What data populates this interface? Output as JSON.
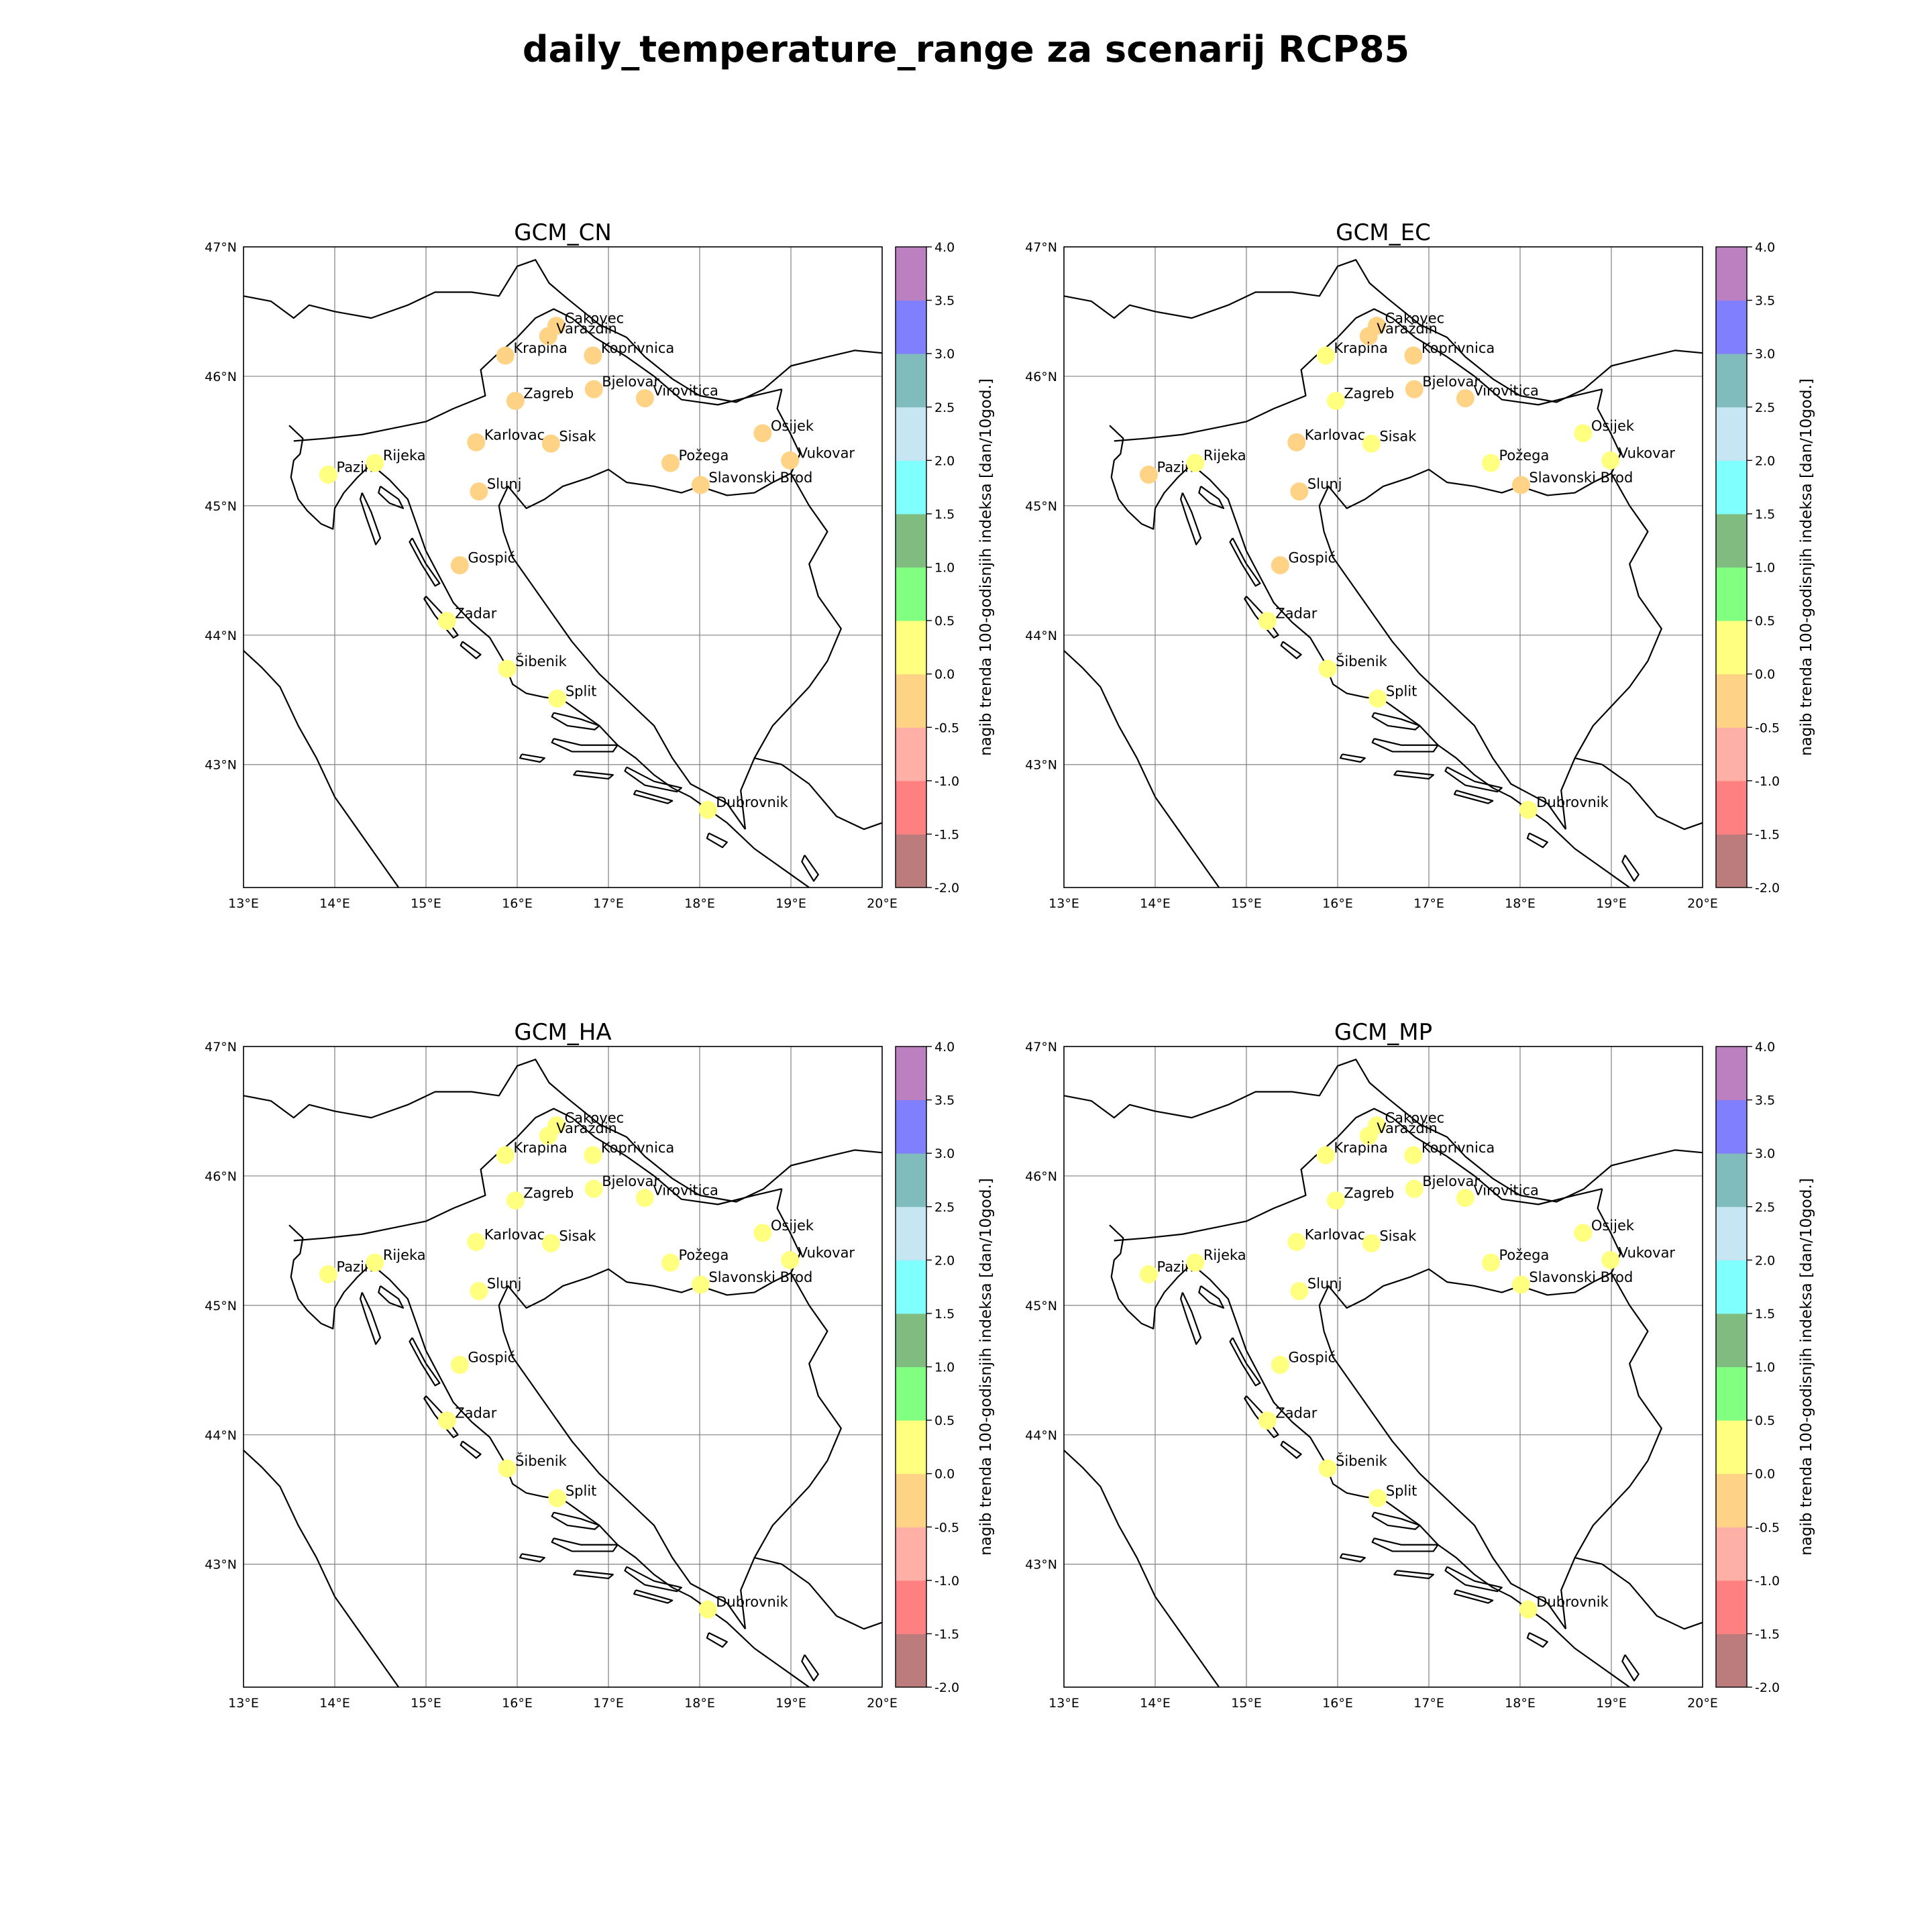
{
  "title": "daily_temperature_range za scenarij RCP85",
  "colorbar": {
    "label": "nagib trenda 100-godisnjih indeksa [dan/10god.]",
    "ticks": [
      "-2.0",
      "-1.5",
      "-1.0",
      "-0.5",
      "0.0",
      "0.5",
      "1.0",
      "1.5",
      "2.0",
      "2.5",
      "3.0",
      "3.5",
      "4.0"
    ],
    "colors": [
      "#bc7c7c",
      "#ff8080",
      "#ffb0a6",
      "#ffd386",
      "#ffff80",
      "#80ff80",
      "#80bc80",
      "#80ffff",
      "#c6e6f3",
      "#80bcbc",
      "#8080ff",
      "#bc80c0"
    ]
  },
  "axes": {
    "lon_labels": [
      "13°E",
      "14°E",
      "15°E",
      "16°E",
      "17°E",
      "18°E",
      "19°E",
      "20°E"
    ],
    "lat_labels": [
      "43°N",
      "44°N",
      "45°N",
      "46°N",
      "47°N"
    ],
    "lon_range": [
      13,
      20
    ],
    "lat_range": [
      42.05,
      47
    ]
  },
  "stations": [
    {
      "name": "Cakovec",
      "lon": 16.43,
      "lat": 46.39
    },
    {
      "name": "Varaždin",
      "lon": 16.34,
      "lat": 46.31
    },
    {
      "name": "Krapina",
      "lon": 15.87,
      "lat": 46.16
    },
    {
      "name": "Koprivnica",
      "lon": 16.83,
      "lat": 46.16
    },
    {
      "name": "Bjelovar",
      "lon": 16.84,
      "lat": 45.9
    },
    {
      "name": "Zagreb",
      "lon": 15.98,
      "lat": 45.81
    },
    {
      "name": "Virovitica",
      "lon": 17.4,
      "lat": 45.83
    },
    {
      "name": "Osijek",
      "lon": 18.69,
      "lat": 45.56
    },
    {
      "name": "Karlovac",
      "lon": 15.55,
      "lat": 45.49
    },
    {
      "name": "Sisak",
      "lon": 16.37,
      "lat": 45.48
    },
    {
      "name": "Vukovar",
      "lon": 18.99,
      "lat": 45.35
    },
    {
      "name": "Požega",
      "lon": 17.68,
      "lat": 45.33
    },
    {
      "name": "Pazin",
      "lon": 13.93,
      "lat": 45.24
    },
    {
      "name": "Rijeka",
      "lon": 14.44,
      "lat": 45.33
    },
    {
      "name": "Slavonski Brod",
      "lon": 18.01,
      "lat": 45.16
    },
    {
      "name": "Slunj",
      "lon": 15.58,
      "lat": 45.11
    },
    {
      "name": "Gospić",
      "lon": 15.37,
      "lat": 44.54
    },
    {
      "name": "Zadar",
      "lon": 15.23,
      "lat": 44.11
    },
    {
      "name": "Šibenik",
      "lon": 15.89,
      "lat": 43.74
    },
    {
      "name": "Split",
      "lon": 16.44,
      "lat": 43.51
    },
    {
      "name": "Dubrovnik",
      "lon": 18.09,
      "lat": 42.65
    }
  ],
  "panels": [
    {
      "name": "GCM_CN",
      "values": [
        -0.3,
        -0.3,
        -0.3,
        -0.3,
        -0.3,
        -0.3,
        -0.3,
        -0.3,
        -0.3,
        -0.3,
        -0.3,
        -0.3,
        0.3,
        0.3,
        -0.3,
        -0.3,
        -0.3,
        0.3,
        0.3,
        0.3,
        0.3
      ]
    },
    {
      "name": "GCM_EC",
      "values": [
        -0.3,
        -0.3,
        0.3,
        -0.3,
        -0.3,
        0.3,
        -0.3,
        0.3,
        -0.3,
        0.3,
        0.3,
        0.3,
        -0.3,
        0.3,
        -0.3,
        -0.3,
        -0.3,
        0.3,
        0.3,
        0.3,
        0.3
      ]
    },
    {
      "name": "GCM_HA",
      "values": [
        0.3,
        0.3,
        0.3,
        0.3,
        0.3,
        0.3,
        0.3,
        0.3,
        0.3,
        0.3,
        0.3,
        0.3,
        0.3,
        0.3,
        0.3,
        0.3,
        0.3,
        0.3,
        0.3,
        0.3,
        0.3
      ]
    },
    {
      "name": "GCM_MP",
      "values": [
        0.3,
        0.3,
        0.3,
        0.3,
        0.3,
        0.3,
        0.3,
        0.3,
        0.3,
        0.3,
        0.3,
        0.3,
        0.3,
        0.3,
        0.3,
        0.3,
        0.3,
        0.3,
        0.3,
        0.3,
        0.3
      ]
    }
  ]
}
